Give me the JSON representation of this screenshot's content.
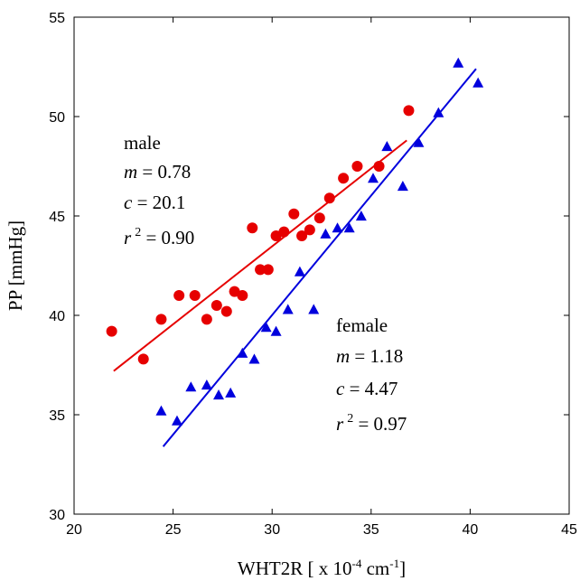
{
  "chart_data": {
    "type": "scatter",
    "xlim": [
      20,
      45
    ],
    "ylim": [
      30,
      55
    ],
    "x_ticks": [
      "20",
      "25",
      "30",
      "35",
      "40",
      "45"
    ],
    "y_ticks": [
      "30",
      "35",
      "40",
      "45",
      "50",
      "55"
    ],
    "xlabel": {
      "main": "WHT2R [ x 10",
      "exp1": "-4",
      "mid": " cm",
      "exp2": "-1",
      "end": "]"
    },
    "ylabel": "PP [mmHg]",
    "grid": false,
    "series": [
      {
        "name": "male",
        "marker": "circle",
        "color": "#e60000",
        "points": [
          [
            21.9,
            39.2
          ],
          [
            23.5,
            37.8
          ],
          [
            24.4,
            39.8
          ],
          [
            25.3,
            41.0
          ],
          [
            26.1,
            41.0
          ],
          [
            26.7,
            39.8
          ],
          [
            27.2,
            40.5
          ],
          [
            27.7,
            40.2
          ],
          [
            28.1,
            41.2
          ],
          [
            28.5,
            41.0
          ],
          [
            29.0,
            44.4
          ],
          [
            29.4,
            42.3
          ],
          [
            29.8,
            42.3
          ],
          [
            30.2,
            44.0
          ],
          [
            30.6,
            44.2
          ],
          [
            31.1,
            45.1
          ],
          [
            31.5,
            44.0
          ],
          [
            31.9,
            44.3
          ],
          [
            32.4,
            44.9
          ],
          [
            32.9,
            45.9
          ],
          [
            33.6,
            46.9
          ],
          [
            34.3,
            47.5
          ],
          [
            35.4,
            47.5
          ],
          [
            36.9,
            50.3
          ]
        ],
        "fit": {
          "x": [
            22.0,
            36.8
          ],
          "y": [
            37.2,
            48.8
          ]
        },
        "annotation": {
          "label": "male",
          "m_label": "m",
          "m": "0.78",
          "c_label": "c",
          "c": "20.1",
          "r_label": "r",
          "r_exp": "2",
          "r2": "0.90"
        }
      },
      {
        "name": "female",
        "marker": "triangle",
        "color": "#0000dd",
        "points": [
          [
            24.4,
            35.2
          ],
          [
            25.2,
            34.7
          ],
          [
            25.9,
            36.4
          ],
          [
            26.7,
            36.5
          ],
          [
            27.3,
            36.0
          ],
          [
            27.9,
            36.1
          ],
          [
            28.5,
            38.1
          ],
          [
            29.1,
            37.8
          ],
          [
            29.7,
            39.4
          ],
          [
            30.2,
            39.2
          ],
          [
            30.8,
            40.3
          ],
          [
            31.4,
            42.2
          ],
          [
            32.1,
            40.3
          ],
          [
            32.7,
            44.1
          ],
          [
            33.3,
            44.4
          ],
          [
            33.9,
            44.4
          ],
          [
            34.5,
            45.0
          ],
          [
            35.1,
            46.9
          ],
          [
            35.8,
            48.5
          ],
          [
            36.6,
            46.5
          ],
          [
            37.4,
            48.7
          ],
          [
            38.4,
            50.2
          ],
          [
            39.4,
            52.7
          ],
          [
            40.4,
            51.7
          ]
        ],
        "fit": {
          "x": [
            24.5,
            40.3
          ],
          "y": [
            33.4,
            52.4
          ]
        },
        "annotation": {
          "label": "female",
          "m_label": "m",
          "m": "1.18",
          "c_label": "c",
          "c": "4.47",
          "r_label": "r",
          "r_exp": "2",
          "r2": "0.97"
        }
      }
    ]
  }
}
